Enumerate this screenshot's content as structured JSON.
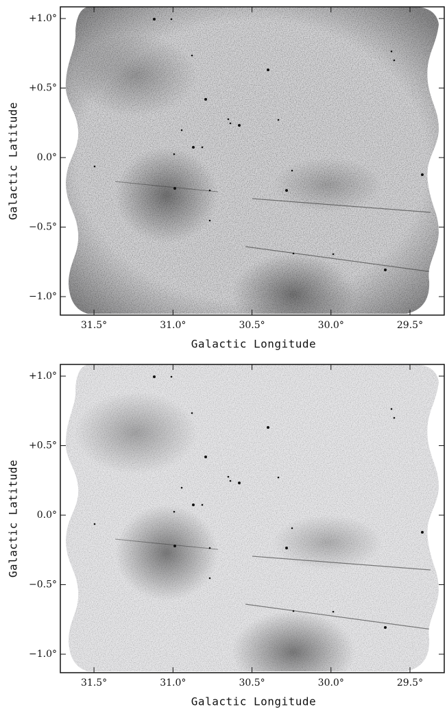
{
  "chart_data": [
    {
      "type": "image",
      "xlabel": "Galactic Longitude",
      "ylabel": "Galactic Latitude",
      "color": "#d4d4d6",
      "xlim": [
        31.713,
        29.283
      ],
      "ylim": [
        -1.133,
        1.084
      ],
      "xticks": [
        {
          "value": 31.5,
          "label": "31.5°"
        },
        {
          "value": 31.0,
          "label": "31.0°"
        },
        {
          "value": 30.5,
          "label": "30.5°"
        },
        {
          "value": 30.0,
          "label": "30.0°"
        },
        {
          "value": 29.5,
          "label": "29.5°"
        }
      ],
      "yticks": [
        {
          "value": 1.0,
          "label": "+1.0°"
        },
        {
          "value": 0.5,
          "label": "+0.5°"
        },
        {
          "value": 0,
          "label": "0.0°"
        },
        {
          "value": -0.5,
          "label": "−0.5°"
        },
        {
          "value": -1.0,
          "label": "−1.0°"
        }
      ]
    },
    {
      "type": "image",
      "xlabel": "Galactic Longitude",
      "ylabel": "Galactic Latitude",
      "color": "#e6e6e8",
      "xlim": [
        31.713,
        29.283
      ],
      "ylim": [
        -1.133,
        1.084
      ],
      "xticks": [
        {
          "value": 31.5,
          "label": "31.5°"
        },
        {
          "value": 31.0,
          "label": "31.0°"
        },
        {
          "value": 30.5,
          "label": "30.5°"
        },
        {
          "value": 30.0,
          "label": "30.0°"
        },
        {
          "value": 29.5,
          "label": "29.5°"
        }
      ],
      "yticks": [
        {
          "value": 1.0,
          "label": "+1.0°"
        },
        {
          "value": 0.5,
          "label": "+0.5°"
        },
        {
          "value": 0,
          "label": "0.0°"
        },
        {
          "value": -0.5,
          "label": "−0.5°"
        },
        {
          "value": -1.0,
          "label": "−1.0°"
        }
      ]
    }
  ]
}
